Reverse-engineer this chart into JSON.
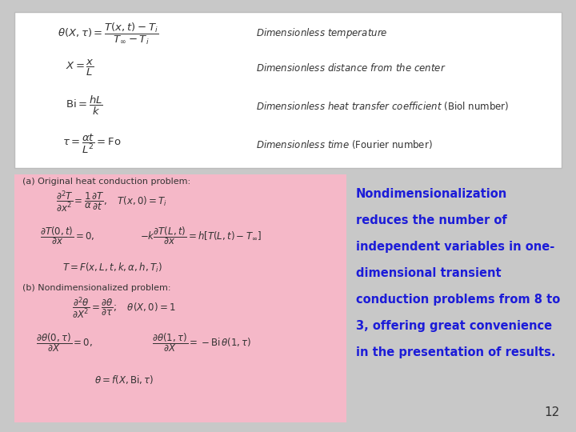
{
  "bg_color": "#c8c8c8",
  "top_box_color": "#ffffff",
  "bottom_box_color": "#f5b8c8",
  "text_color_dark": "#333333",
  "text_color_blue": "#1c1cd8",
  "slide_number": "12",
  "callout_text": "Nondimensionalization\nreduces the number of\nindependent variables in one-\ndimensional transient\nconduction problems from 8 to\n3, offering great convenience\nin the presentation of results."
}
